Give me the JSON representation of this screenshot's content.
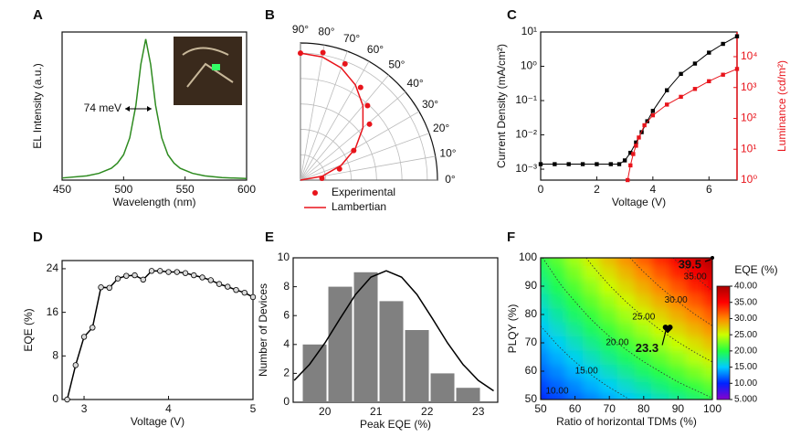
{
  "chart_data": [
    {
      "panel": "A",
      "type": "line",
      "xlabel": "Wavelength (nm)",
      "ylabel": "EL Intensity (a.u.)",
      "annotation": "74 meV",
      "xlim": [
        450,
        600
      ],
      "xticks": [
        450,
        500,
        550,
        600
      ],
      "ylim": [
        0,
        1.05
      ],
      "x": [
        450,
        470,
        480,
        490,
        495,
        500,
        505,
        510,
        514,
        518,
        522,
        526,
        531,
        536,
        541,
        546,
        556,
        566,
        580,
        600
      ],
      "series": [
        {
          "color": "#2e8b20",
          "values": [
            0.015,
            0.03,
            0.048,
            0.084,
            0.12,
            0.18,
            0.3,
            0.53,
            0.82,
            1.0,
            0.82,
            0.53,
            0.3,
            0.18,
            0.12,
            0.084,
            0.048,
            0.03,
            0.018,
            0.011
          ]
        }
      ]
    },
    {
      "panel": "B",
      "type": "polar",
      "rlim": [
        0,
        1.08
      ],
      "rticks": [
        0.2,
        0.4,
        0.6,
        0.8,
        1.0
      ],
      "angleticks": [
        {
          "value": 0,
          "label": "0°"
        },
        {
          "value": 10,
          "label": "10°"
        },
        {
          "value": 20,
          "label": "20°"
        },
        {
          "value": 30,
          "label": "30°"
        },
        {
          "value": 40,
          "label": "40°"
        },
        {
          "value": 50,
          "label": "50°"
        },
        {
          "value": 60,
          "label": "60°"
        },
        {
          "value": 70,
          "label": "70°"
        },
        {
          "value": 80,
          "label": "80°"
        },
        {
          "value": 90,
          "label": "90°"
        }
      ],
      "series": [
        {
          "name": "Experimental",
          "color": "#e8141b",
          "marker": "circle",
          "x": [
            5,
            16,
            29,
            39,
            48,
            57,
            69,
            80,
            90
          ],
          "values": [
            0.17,
            0.32,
            0.48,
            0.7,
            0.79,
            0.87,
            0.98,
            1.02,
            1.0
          ]
        },
        {
          "name": "Lambertian",
          "color": "#e8141b",
          "x": [
            0,
            10,
            20,
            30,
            40,
            50,
            60,
            70,
            80,
            90
          ],
          "values": [
            0,
            0.174,
            0.342,
            0.5,
            0.643,
            0.766,
            0.866,
            0.94,
            0.985,
            1.0
          ]
        }
      ]
    },
    {
      "panel": "C",
      "type": "line",
      "xlabel": "Voltage (V)",
      "ylabel": "Current Density (mA/cm²)",
      "y2label": "Luminance (cd/m²)",
      "y2color": "#e8141b",
      "xlim": [
        0,
        7
      ],
      "xticks": [
        0,
        2,
        4,
        6
      ],
      "ylog": true,
      "ylim": [
        0.00048,
        10
      ],
      "yticks": [
        {
          "value": 0.001,
          "label": "10⁻³"
        },
        {
          "value": 0.01,
          "label": "10⁻²"
        },
        {
          "value": 0.1,
          "label": "10⁻¹"
        },
        {
          "value": 1,
          "label": "10⁰"
        },
        {
          "value": 10,
          "label": "10¹"
        }
      ],
      "y2log": true,
      "y2lim": [
        1,
        63000
      ],
      "y2ticks": [
        {
          "value": 1,
          "label": "10⁰"
        },
        {
          "value": 10,
          "label": "10¹"
        },
        {
          "value": 100,
          "label": "10²"
        },
        {
          "value": 1000,
          "label": "10³"
        },
        {
          "value": 10000,
          "label": "10⁴"
        }
      ],
      "series": [
        {
          "color": "#000000",
          "marker": "square",
          "x": [
            0,
            0.5,
            1,
            1.5,
            2,
            2.5,
            2.8,
            3.0,
            3.2,
            3.4,
            3.6,
            3.8,
            4.0,
            4.5,
            5,
            5.5,
            6,
            6.5,
            7
          ],
          "values": [
            0.0014,
            0.0014,
            0.0014,
            0.0014,
            0.0014,
            0.0014,
            0.0014,
            0.0018,
            0.003,
            0.006,
            0.012,
            0.025,
            0.05,
            0.2,
            0.6,
            1.2,
            2.5,
            4.5,
            7.5
          ]
        },
        {
          "color": "#e8141b",
          "marker": "square",
          "axis": "y2",
          "x": [
            3.1,
            3.2,
            3.3,
            3.4,
            3.5,
            3.7,
            4,
            4.5,
            5,
            5.5,
            6,
            6.5,
            7
          ],
          "values": [
            1,
            3,
            7,
            13,
            24,
            60,
            126,
            280,
            500,
            900,
            1600,
            2600,
            4000
          ]
        }
      ]
    },
    {
      "panel": "D",
      "type": "line",
      "xlabel": "Voltage (V)",
      "ylabel": "EQE (%)",
      "xlim": [
        2.74,
        5
      ],
      "xticks": [
        3,
        4,
        5
      ],
      "ylim": [
        0,
        25.5
      ],
      "yticks": [
        0,
        8,
        16,
        24
      ],
      "x": [
        2.8,
        2.9,
        3.0,
        3.1,
        3.2,
        3.3,
        3.4,
        3.5,
        3.6,
        3.7,
        3.8,
        3.9,
        4.0,
        4.1,
        4.2,
        4.3,
        4.4,
        4.5,
        4.6,
        4.7,
        4.8,
        4.9,
        5.0
      ],
      "series": [
        {
          "color": "#000000",
          "marker": "circle",
          "marker_fill": "#d9d9d9",
          "values": [
            0,
            6.3,
            11.5,
            13.2,
            20.6,
            20.5,
            22.2,
            22.7,
            22.8,
            22,
            23.6,
            23.6,
            23.4,
            23.4,
            23.2,
            22.8,
            22.4,
            21.9,
            21.2,
            20.7,
            20.1,
            19.6,
            18.8
          ]
        }
      ]
    },
    {
      "panel": "E",
      "type": "histogram",
      "xlabel": "Peak EQE (%)",
      "ylabel": "Number of Devices",
      "xlim": [
        19.38,
        23.38
      ],
      "xticks": [
        20,
        21,
        22,
        23
      ],
      "ylim": [
        0,
        10
      ],
      "yticks": [
        0,
        2,
        4,
        6,
        8,
        10
      ],
      "color": "#808080",
      "bins": [
        19.55,
        20.05,
        20.55,
        21.05,
        21.55,
        22.05,
        22.55,
        23.05
      ],
      "values": [
        4,
        8,
        9,
        7,
        5,
        2,
        1
      ],
      "fit": {
        "color": "#000000",
        "x": [
          19.4,
          19.7,
          20.0,
          20.3,
          20.6,
          20.9,
          21.2,
          21.5,
          21.8,
          22.1,
          22.4,
          22.7,
          23.0,
          23.3
        ],
        "values": [
          1.51,
          2.62,
          4.1,
          5.81,
          7.46,
          8.66,
          9.1,
          8.66,
          7.46,
          5.81,
          4.1,
          2.62,
          1.51,
          0.79
        ]
      }
    },
    {
      "panel": "F",
      "type": "heatmap",
      "xlabel": "Ratio of horizontal TDMs (%)",
      "ylabel": "PLQY (%)",
      "colorbar_title": "EQE (%)",
      "xlim": [
        50,
        100
      ],
      "xticks": [
        50,
        60,
        70,
        80,
        90,
        100
      ],
      "ylim": [
        50,
        100
      ],
      "yticks": [
        50,
        60,
        70,
        80,
        90,
        100
      ],
      "clim": [
        5,
        40
      ],
      "colormap": [
        "#8800cc",
        "#0022ff",
        "#00ccff",
        "#22ff44",
        "#ccff00",
        "#ff8800",
        "#ff0000",
        "#aa0000"
      ],
      "colorbar_ticks": [
        {
          "value": 5,
          "label": "5.000"
        },
        {
          "value": 10,
          "label": "10.00"
        },
        {
          "value": 15,
          "label": "15.00"
        },
        {
          "value": 20,
          "label": "20.00"
        },
        {
          "value": 25,
          "label": "25.00"
        },
        {
          "value": 30,
          "label": "30.00"
        },
        {
          "value": 35,
          "label": "35.00"
        },
        {
          "value": 40,
          "label": "40.00"
        }
      ],
      "contours": [
        {
          "value": 10,
          "label": "10.00"
        },
        {
          "value": 15,
          "label": "15.00"
        },
        {
          "value": 20,
          "label": "20.00"
        },
        {
          "value": 25,
          "label": "25.00"
        },
        {
          "value": 30,
          "label": "30.00"
        },
        {
          "value": 35,
          "label": "35.00"
        }
      ],
      "x": [
        50,
        55,
        60,
        65,
        70,
        75,
        80,
        85,
        90,
        95,
        100
      ],
      "y": [
        50,
        55,
        60,
        65,
        70,
        75,
        80,
        85,
        90,
        95,
        100
      ],
      "z": [
        [
          9.9,
          10.9,
          11.9,
          12.8,
          13.8,
          14.8,
          15.8,
          16.8,
          17.8,
          18.8,
          19.8
        ],
        [
          10.9,
          11.9,
          13.0,
          14.1,
          15.2,
          16.3,
          17.4,
          18.5,
          19.6,
          20.6,
          21.7
        ],
        [
          11.9,
          13.0,
          14.2,
          15.4,
          16.6,
          17.8,
          19.0,
          20.1,
          21.3,
          22.5,
          23.7
        ],
        [
          12.8,
          14.1,
          15.4,
          16.7,
          18.0,
          19.3,
          20.5,
          21.8,
          23.1,
          24.4,
          25.7
        ],
        [
          13.8,
          15.2,
          16.6,
          18.0,
          19.4,
          20.7,
          22.1,
          23.5,
          24.9,
          26.3,
          27.7
        ],
        [
          14.8,
          16.3,
          17.8,
          19.3,
          20.7,
          22.2,
          23.7,
          25.2,
          26.7,
          28.1,
          29.6
        ],
        [
          15.8,
          17.4,
          19.0,
          20.5,
          22.1,
          23.7,
          25.3,
          26.9,
          28.4,
          30.0,
          31.6
        ],
        [
          16.8,
          18.5,
          20.1,
          21.8,
          23.5,
          25.2,
          26.9,
          28.5,
          30.2,
          31.9,
          33.6
        ],
        [
          17.8,
          19.6,
          21.3,
          23.1,
          24.9,
          26.7,
          28.4,
          30.2,
          32.0,
          33.8,
          35.6
        ],
        [
          18.8,
          20.6,
          22.5,
          24.4,
          26.3,
          28.1,
          30.0,
          31.9,
          33.8,
          35.6,
          37.5
        ],
        [
          19.8,
          21.7,
          23.7,
          25.7,
          27.7,
          29.6,
          31.6,
          33.6,
          35.6,
          37.5,
          39.5
        ]
      ],
      "markers": [
        {
          "x": 100,
          "y": 100,
          "value": 39.5
        },
        {
          "x": 87,
          "y": 75,
          "value": 23.3
        }
      ]
    }
  ]
}
